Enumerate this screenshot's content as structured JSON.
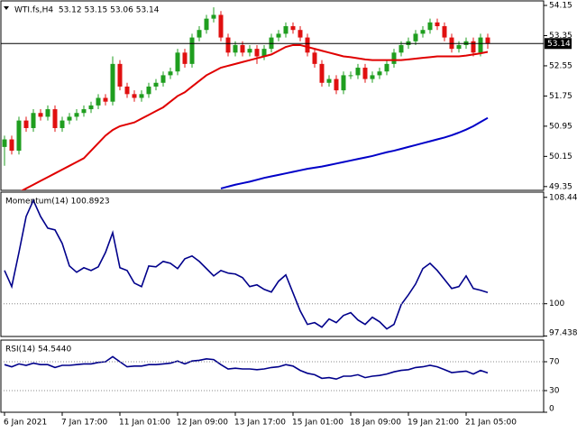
{
  "chart_data": [
    {
      "type": "candlestick",
      "title": "WTI.fs,H4  53.12 53.15 53.06 53.14",
      "categories": [
        "6 Jan 2021",
        null,
        null,
        null,
        null,
        null,
        null,
        null,
        "7 Jan 17:00",
        null,
        null,
        null,
        null,
        null,
        null,
        null,
        "11 Jan 01:00",
        null,
        null,
        null,
        null,
        null,
        null,
        null,
        "12 Jan 09:00",
        null,
        null,
        null,
        null,
        null,
        null,
        null,
        "13 Jan 17:00",
        null,
        null,
        null,
        null,
        null,
        null,
        null,
        "15 Jan 01:00",
        null,
        null,
        null,
        null,
        null,
        null,
        null,
        "18 Jan 09:00",
        null,
        null,
        null,
        null,
        null,
        null,
        null,
        "19 Jan 21:00",
        null,
        null,
        null,
        null,
        null,
        null,
        null,
        "21 Jan 05:00",
        null,
        null,
        null
      ],
      "open": [
        50.4,
        50.6,
        50.3,
        51.1,
        50.9,
        51.3,
        51.2,
        51.4,
        50.9,
        51.1,
        51.2,
        51.3,
        51.4,
        51.5,
        51.7,
        51.6,
        52.6,
        52.0,
        51.8,
        51.7,
        51.8,
        52.0,
        52.1,
        52.3,
        52.4,
        52.9,
        52.6,
        53.3,
        53.5,
        53.8,
        53.9,
        53.3,
        52.9,
        53.1,
        52.9,
        53.0,
        52.8,
        53.0,
        53.3,
        53.4,
        53.6,
        53.5,
        53.3,
        52.9,
        52.6,
        52.1,
        52.2,
        51.9,
        52.3,
        52.3,
        52.5,
        52.2,
        52.3,
        52.4,
        52.6,
        52.9,
        53.1,
        53.2,
        53.4,
        53.5,
        53.7,
        53.6,
        53.3,
        53.0,
        53.1,
        53.2,
        52.9,
        53.3
      ],
      "high": [
        50.7,
        50.7,
        51.2,
        51.2,
        51.4,
        51.4,
        51.5,
        51.5,
        51.2,
        51.3,
        51.4,
        51.5,
        51.6,
        51.8,
        51.8,
        52.8,
        52.7,
        52.1,
        51.9,
        51.9,
        52.1,
        52.2,
        52.4,
        52.5,
        53.0,
        53.0,
        53.4,
        53.6,
        53.9,
        54.1,
        54.0,
        53.4,
        53.2,
        53.2,
        53.1,
        53.1,
        53.1,
        53.4,
        53.5,
        53.7,
        53.7,
        53.6,
        53.4,
        53.0,
        52.7,
        52.3,
        52.3,
        52.4,
        52.4,
        52.6,
        52.6,
        52.4,
        52.5,
        52.7,
        53.0,
        53.2,
        53.3,
        53.5,
        53.6,
        53.8,
        53.8,
        53.7,
        53.4,
        53.2,
        53.3,
        53.3,
        53.4,
        53.4
      ],
      "low": [
        49.9,
        50.2,
        50.2,
        50.8,
        50.8,
        51.1,
        51.1,
        50.8,
        50.8,
        51.0,
        51.1,
        51.2,
        51.3,
        51.4,
        51.5,
        51.5,
        51.9,
        51.7,
        51.6,
        51.6,
        51.7,
        51.9,
        52.0,
        52.2,
        52.3,
        52.5,
        52.5,
        53.2,
        53.4,
        53.7,
        53.2,
        52.8,
        52.8,
        52.8,
        52.8,
        52.6,
        52.7,
        52.9,
        53.2,
        53.3,
        53.4,
        53.2,
        52.8,
        52.5,
        52.0,
        52.0,
        51.8,
        51.8,
        52.2,
        52.2,
        52.1,
        52.1,
        52.2,
        52.3,
        52.5,
        52.8,
        53.0,
        53.1,
        53.3,
        53.4,
        53.5,
        53.2,
        52.9,
        52.9,
        53.0,
        52.8,
        52.8,
        53.0
      ],
      "close": [
        50.6,
        50.3,
        51.1,
        50.9,
        51.3,
        51.2,
        51.4,
        50.9,
        51.1,
        51.2,
        51.3,
        51.4,
        51.5,
        51.7,
        51.6,
        52.6,
        52.0,
        51.8,
        51.7,
        51.8,
        52.0,
        52.1,
        52.3,
        52.4,
        52.9,
        52.6,
        53.3,
        53.5,
        53.8,
        53.9,
        53.3,
        52.9,
        53.1,
        52.9,
        53.0,
        52.8,
        53.0,
        53.3,
        53.4,
        53.6,
        53.5,
        53.3,
        52.9,
        52.6,
        52.1,
        52.2,
        51.9,
        52.3,
        52.3,
        52.5,
        52.2,
        52.3,
        52.4,
        52.6,
        52.9,
        53.1,
        53.2,
        53.4,
        53.5,
        53.7,
        53.6,
        53.3,
        53.0,
        53.1,
        53.2,
        52.9,
        53.3,
        53.14
      ],
      "up_color": "#1f9e1f",
      "down_color": "#e01010",
      "series": [
        {
          "color": "#e00000",
          "values": [
            49.0,
            49.1,
            49.2,
            49.3,
            49.4,
            49.5,
            49.6,
            49.7,
            49.8,
            49.9,
            50.0,
            50.1,
            50.3,
            50.5,
            50.7,
            50.85,
            50.95,
            51.0,
            51.05,
            51.15,
            51.25,
            51.35,
            51.45,
            51.6,
            51.75,
            51.85,
            52.0,
            52.15,
            52.3,
            52.4,
            52.5,
            52.55,
            52.6,
            52.65,
            52.7,
            52.75,
            52.8,
            52.85,
            52.95,
            53.05,
            53.1,
            53.1,
            53.05,
            53.0,
            52.95,
            52.9,
            52.85,
            52.8,
            52.78,
            52.75,
            52.72,
            52.7,
            52.7,
            52.7,
            52.7,
            52.7,
            52.72,
            52.74,
            52.76,
            52.78,
            52.8,
            52.8,
            52.8,
            52.8,
            52.82,
            52.85,
            52.88,
            52.92
          ]
        },
        {
          "color": "#0000c8",
          "values": [
            null,
            null,
            null,
            null,
            null,
            null,
            null,
            null,
            null,
            null,
            null,
            null,
            null,
            null,
            null,
            null,
            null,
            null,
            null,
            null,
            null,
            null,
            null,
            null,
            null,
            null,
            null,
            null,
            null,
            null,
            49.3,
            49.35,
            49.4,
            49.44,
            49.48,
            49.53,
            49.58,
            49.62,
            49.66,
            49.7,
            49.74,
            49.78,
            49.82,
            49.85,
            49.88,
            49.92,
            49.96,
            50.0,
            50.04,
            50.08,
            50.12,
            50.16,
            50.21,
            50.26,
            50.3,
            50.35,
            50.4,
            50.45,
            50.5,
            50.55,
            50.6,
            50.65,
            50.71,
            50.78,
            50.86,
            50.95,
            51.06,
            51.17
          ]
        }
      ],
      "last_price": 53.14,
      "ylim": [
        49.25,
        54.27
      ],
      "yticks": [
        54.15,
        53.35,
        52.55,
        51.75,
        50.95,
        50.15,
        49.35
      ]
    },
    {
      "type": "line",
      "title": "Momentum(14) 100.8923",
      "color": "#00008b",
      "values": [
        102.64,
        101.36,
        104.07,
        106.93,
        108.21,
        106.93,
        106.0,
        105.86,
        104.79,
        103.0,
        102.5,
        102.86,
        102.64,
        102.93,
        104.07,
        105.64,
        102.86,
        102.64,
        101.64,
        101.36,
        103.0,
        102.93,
        103.36,
        103.21,
        102.79,
        103.57,
        103.79,
        103.36,
        102.79,
        102.21,
        102.64,
        102.43,
        102.36,
        102.07,
        101.36,
        101.5,
        101.14,
        100.93,
        101.79,
        102.29,
        100.86,
        99.43,
        98.36,
        98.5,
        98.14,
        98.79,
        98.5,
        99.07,
        99.29,
        98.71,
        98.36,
        98.93,
        98.57,
        98.0,
        98.36,
        99.93,
        100.71,
        101.57,
        102.79,
        103.21,
        102.64,
        101.93,
        101.21,
        101.36,
        102.21,
        101.21,
        101.07,
        100.89
      ],
      "levels": [
        100
      ],
      "ylim": [
        97.4,
        108.86
      ],
      "yticks": [
        108.448,
        100,
        97.4381
      ]
    },
    {
      "type": "line",
      "title": "RSI(14) 54.5440",
      "color": "#00008b",
      "values": [
        66,
        63,
        67,
        65,
        68,
        66,
        66,
        62,
        65,
        65,
        66,
        67,
        67,
        69,
        70,
        77,
        70,
        63,
        64,
        64,
        66,
        66,
        67,
        68,
        71,
        67,
        71,
        72,
        74,
        73,
        66,
        60,
        61,
        60,
        60,
        59,
        60,
        62,
        63,
        66,
        64,
        58,
        54,
        52,
        47,
        48,
        46,
        50,
        50,
        52,
        48,
        50,
        51,
        53,
        56,
        58,
        59,
        62,
        63,
        65,
        63,
        59,
        55,
        56,
        57,
        53,
        58,
        54.544
      ],
      "levels": [
        70,
        30
      ],
      "ylim": [
        0,
        100
      ],
      "yticks": [
        70,
        30,
        0
      ]
    }
  ]
}
